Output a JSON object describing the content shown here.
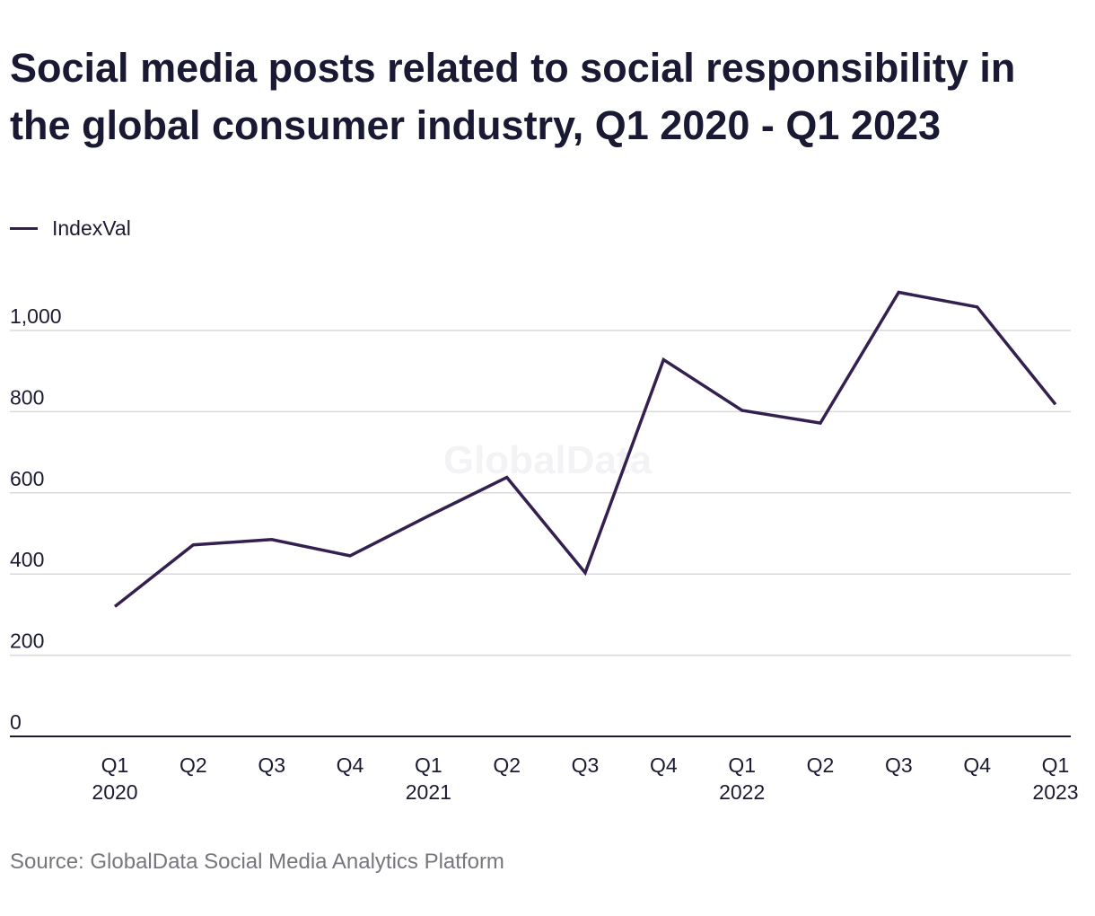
{
  "chart_data": {
    "type": "line",
    "title": "Social media posts related to social responsibility in the global consumer industry, Q1 2020 - Q1 2023",
    "categories": [
      [
        "Q1",
        "2020"
      ],
      [
        "Q2",
        ""
      ],
      [
        "Q3",
        ""
      ],
      [
        "Q4",
        ""
      ],
      [
        "Q1",
        "2021"
      ],
      [
        "Q2",
        ""
      ],
      [
        "Q3",
        ""
      ],
      [
        "Q4",
        ""
      ],
      [
        "Q1",
        "2022"
      ],
      [
        "Q2",
        ""
      ],
      [
        "Q3",
        ""
      ],
      [
        "Q4",
        ""
      ],
      [
        "Q1",
        "2023"
      ]
    ],
    "series": [
      {
        "name": "IndexVal",
        "color": "#33204f",
        "values": [
          320,
          472,
          485,
          445,
          543,
          638,
          403,
          928,
          803,
          772,
          1094,
          1058,
          818
        ]
      }
    ],
    "ylim": [
      0,
      1000
    ],
    "yticks": [
      0,
      200,
      400,
      600,
      800,
      1000
    ],
    "ytick_labels": [
      "0",
      "200",
      "400",
      "600",
      "800",
      "1,000"
    ],
    "xlabel": "",
    "ylabel": "",
    "legend": "top-left",
    "grid": "horizontal",
    "watermark": "GlobalData"
  },
  "source": "Source: GlobalData Social Media Analytics Platform"
}
